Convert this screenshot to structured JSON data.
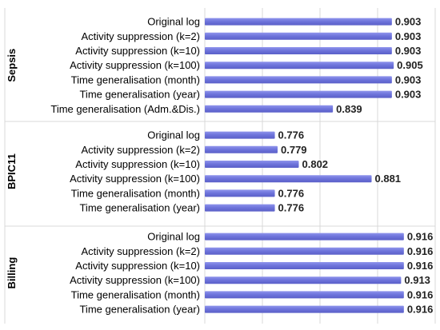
{
  "chart_data": {
    "type": "bar",
    "orientation": "horizontal",
    "bar_color": "#6a6fd6",
    "bar_highlight": "#8a8fe6",
    "grid": true,
    "groups": [
      {
        "name": "Sepsis",
        "categories": [
          "Original log",
          "Activity suppression (k=2)",
          "Activity suppression (k=10)",
          "Activity suppression (k=100)",
          "Time generalisation (month)",
          "Time generalisation (year)",
          "Time generalisation (Adm.&Dis.)"
        ],
        "values": [
          0.903,
          0.903,
          0.903,
          0.905,
          0.903,
          0.903,
          0.839
        ],
        "value_labels": [
          "0.903",
          "0.903",
          "0.903",
          "0.905",
          "0.903",
          "0.903",
          "0.839"
        ]
      },
      {
        "name": "BPIC11",
        "categories": [
          "Original log",
          "Activity suppression (k=2)",
          "Activity suppression (k=10)",
          "Activity suppression (k=100)",
          "Time generalisation (month)",
          "Time generalisation (year)"
        ],
        "values": [
          0.776,
          0.779,
          0.802,
          0.881,
          0.776,
          0.776
        ],
        "value_labels": [
          "0.776",
          "0.779",
          "0.802",
          "0.881",
          "0.776",
          "0.776"
        ]
      },
      {
        "name": "Billing",
        "categories": [
          "Original log",
          "Activity suppression (k=2)",
          "Activity suppression (k=10)",
          "Activity suppression (k=100)",
          "Time generalisation (month)",
          "Time generalisation (year)"
        ],
        "values": [
          0.916,
          0.916,
          0.916,
          0.913,
          0.916,
          0.916
        ],
        "value_labels": [
          "0.916",
          "0.916",
          "0.916",
          "0.913",
          "0.916",
          "0.916"
        ]
      }
    ]
  }
}
